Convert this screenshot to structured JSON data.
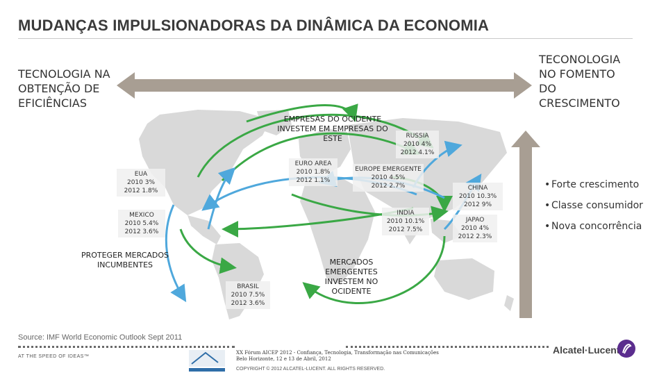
{
  "title": "MUDANÇAS IMPULSIONADORAS DA DINÂMICA DA ECONOMIA",
  "left_label": "TECNOLOGIA NA\nOBTENÇÃO DE\nEFICIÊNCIAS",
  "right_label": "TECONOLOGIA\nNO FOMENTO\nDO\nCRESCIMENTO",
  "callouts": {
    "west_invest_east": "EMPRESAS DO OCIDENTE\nINVESTEM EM EMPRESAS DO\nESTE",
    "protect_markets": "PROTEGER MERCADOS\nINCUMBENTES",
    "emerging_invest_west": "MERCADOS\nEMERGENTES\nINVESTEM NO\nOCIDENTE"
  },
  "regions": {
    "eua": "EUA\n2010 3%\n2012 1.8%",
    "mexico": "MEXICO\n2010 5.4%\n2012 3.6%",
    "brasil": "BRASIL\n2010 7.5%\n2012 3.6%",
    "euro_area": "EURO AREA\n2010 1.8%\n2012 1.1%",
    "europe_emergente": "EUROPE EMERGENTE\n2010 4.5%\n2012 2.7%",
    "russia": "RUSSIA\n2010 4%\n2012 4.1%",
    "china": "CHINA\n2010 10.3%\n2012 9%",
    "india": "INDIA\n2010 10.1%\n2012 7.5%",
    "japao": "JAPAO\n2010 4%\n2012 2.3%"
  },
  "bullets": [
    "Forte crescimento",
    "Classe consumidor",
    "Nova concorrência"
  ],
  "source": "Source: IMF World Economic Outlook Sept 2011",
  "footer": {
    "tagline": "AT THE SPEED OF IDEAS™",
    "event": "XX Fórum AICEP 2012 - Confiança, Tecnologia, Transformação nas Comunicações\nBelo Horizonte, 12 e 13 de Abril, 2012",
    "copyright": "COPYRIGHT © 2012 ALCATEL-LUCENT. ALL RIGHTS RESERVED.",
    "brand": "Alcatel·Lucent"
  },
  "colors": {
    "green_arrow": "#3aa845",
    "blue_arrow": "#4fa8dc",
    "map": "#d9d9d9",
    "horizontal_arrow": "#a89e93"
  }
}
